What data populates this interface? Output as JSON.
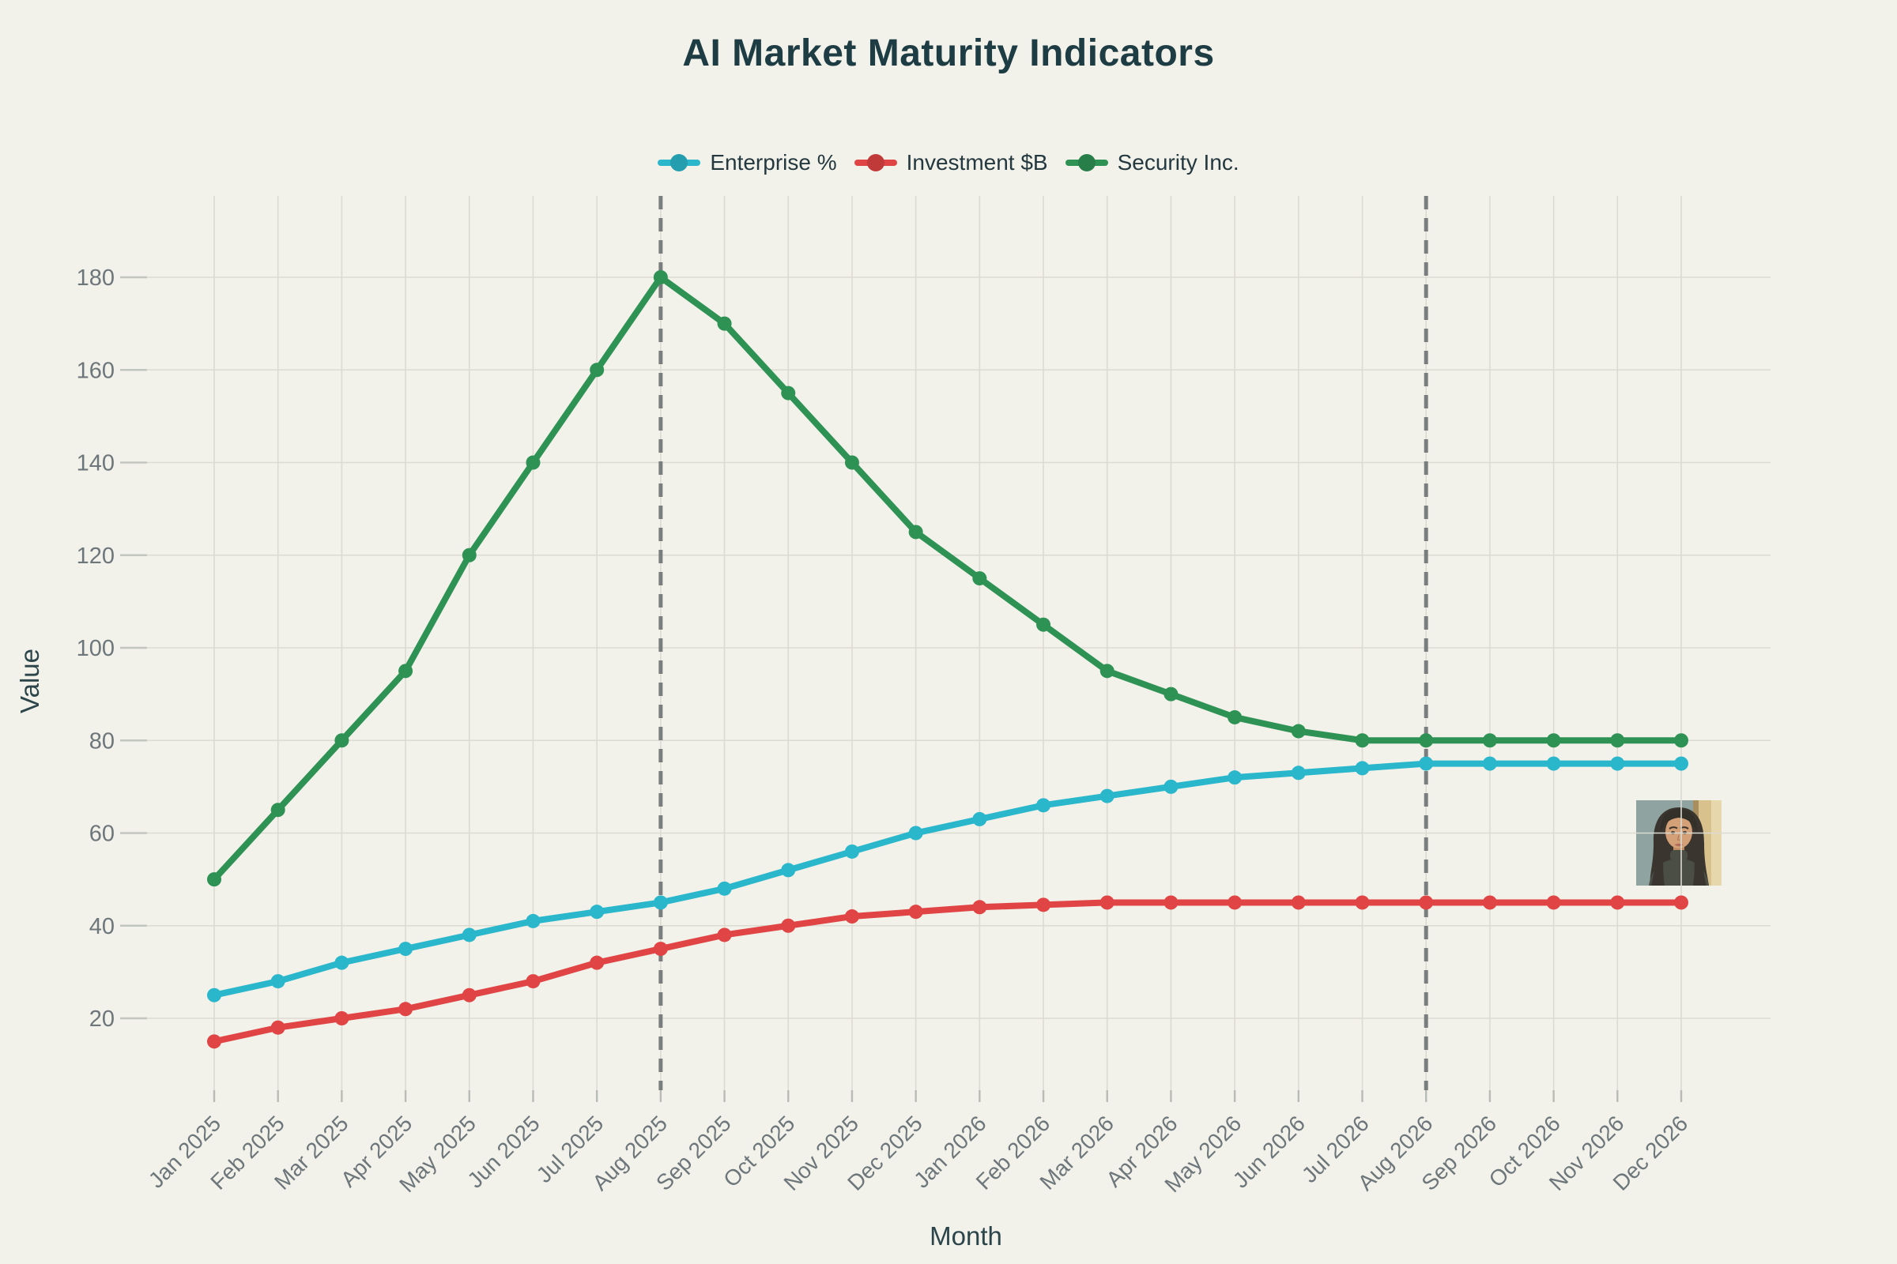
{
  "title": "AI Market Maturity Indicators",
  "chart_data": {
    "type": "line",
    "categories": [
      "Jan 2025",
      "Feb 2025",
      "Mar 2025",
      "Apr 2025",
      "May 2025",
      "Jun 2025",
      "Jul 2025",
      "Aug 2025",
      "Sep 2025",
      "Oct 2025",
      "Nov 2025",
      "Dec 2025",
      "Jan 2026",
      "Feb 2026",
      "Mar 2026",
      "Apr 2026",
      "May 2026",
      "Jun 2026",
      "Jul 2026",
      "Aug 2026",
      "Sep 2026",
      "Oct 2026",
      "Nov 2026",
      "Dec 2026"
    ],
    "series": [
      {
        "name": "Enterprise %",
        "color": "#2ab7cb",
        "values": [
          25,
          28,
          32,
          35,
          38,
          41,
          43,
          45,
          48,
          52,
          56,
          60,
          63,
          66,
          68,
          70,
          72,
          73,
          74,
          75,
          75,
          75,
          75,
          75
        ]
      },
      {
        "name": "Investment $B",
        "color": "#e04444",
        "values": [
          15,
          18,
          20,
          22,
          25,
          28,
          32,
          35,
          38,
          40,
          42,
          43,
          44,
          44.5,
          45,
          45,
          45,
          45,
          45,
          45,
          45,
          45,
          45,
          45
        ]
      },
      {
        "name": "Security Inc.",
        "color": "#2e9254",
        "values": [
          50,
          65,
          80,
          95,
          120,
          140,
          160,
          180,
          170,
          155,
          140,
          125,
          115,
          105,
          95,
          90,
          85,
          82,
          80,
          80,
          80,
          80,
          80,
          80
        ]
      }
    ],
    "xlabel": "Month",
    "ylabel": "Value",
    "y_ticks": [
      20,
      40,
      60,
      80,
      100,
      120,
      140,
      160,
      180
    ],
    "ylim": [
      4,
      198
    ],
    "grid": true,
    "legend_position": "top",
    "annotations": {
      "vlines": [
        "Aug 2025",
        "Aug 2026"
      ],
      "style": "dashed",
      "color": "#75787a"
    }
  },
  "images": {
    "portrait": "woman-portrait-illustration"
  },
  "colors": {
    "background": "#f2f1ea",
    "grid": "#dcdbd2",
    "tick": "#b9bcb4",
    "tick_label": "#6d767a",
    "axis_title": "#2b454b",
    "title": "#1d3c43"
  }
}
